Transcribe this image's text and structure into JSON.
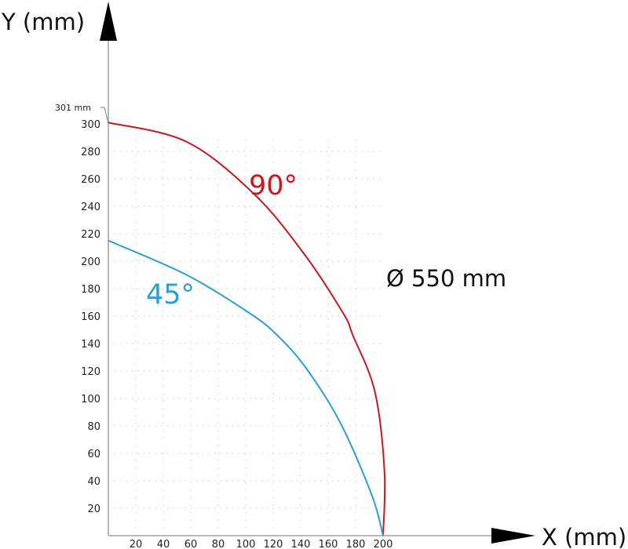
{
  "chart_data": {
    "type": "line",
    "xlabel": "X (mm)",
    "ylabel": "Y (mm)",
    "xlim": [
      0,
      200
    ],
    "ylim": [
      0,
      300
    ],
    "grid": true,
    "xticks": [
      20,
      40,
      60,
      80,
      100,
      120,
      140,
      160,
      180,
      200
    ],
    "yticks": [
      20,
      40,
      60,
      80,
      100,
      120,
      140,
      160,
      180,
      200,
      220,
      240,
      260,
      280,
      300
    ],
    "series": [
      {
        "name": "90°",
        "color": "#c8191e",
        "points": [
          [
            0,
            301
          ],
          [
            57,
            287
          ],
          [
            106,
            249
          ],
          [
            142,
            206
          ],
          [
            171,
            162
          ],
          [
            178,
            146
          ],
          [
            194,
            105
          ],
          [
            201,
            47
          ],
          [
            200,
            0
          ]
        ]
      },
      {
        "name": "45°",
        "color": "#2e9fd2",
        "points": [
          [
            0,
            215
          ],
          [
            57,
            190
          ],
          [
            103,
            162
          ],
          [
            123,
            146
          ],
          [
            144,
            122
          ],
          [
            169,
            82
          ],
          [
            192,
            29
          ],
          [
            200,
            0
          ]
        ]
      }
    ],
    "annotations": {
      "max_height": "301 mm",
      "diameter": "Ø 550 mm"
    }
  }
}
